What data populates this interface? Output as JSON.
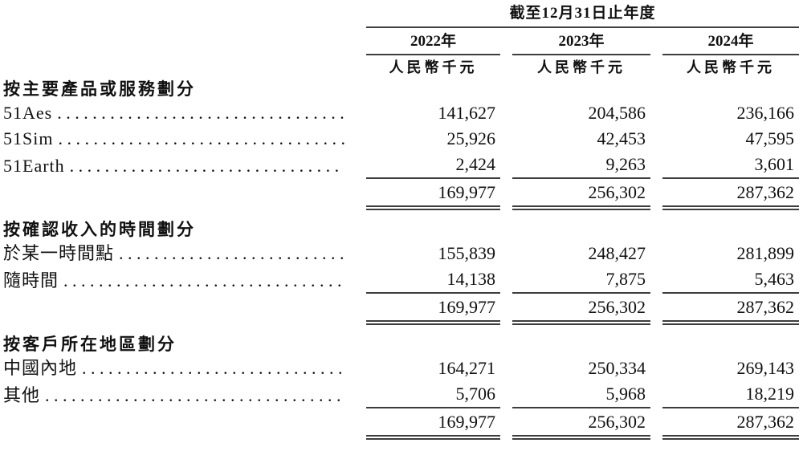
{
  "page": {
    "period_header": "截至12月31日止年度",
    "years": [
      "2022年",
      "2023年",
      "2024年"
    ],
    "unit_label": "人民幣千元",
    "sections": [
      {
        "header": "按主要產品或服務劃分",
        "rows": [
          {
            "label": "51Aes",
            "values": [
              "141,627",
              "204,586",
              "236,166"
            ]
          },
          {
            "label": "51Sim",
            "values": [
              "25,926",
              "42,453",
              "47,595"
            ]
          },
          {
            "label": "51Earth",
            "values": [
              "2,424",
              "9,263",
              "3,601"
            ]
          }
        ],
        "total_values": [
          "169,977",
          "256,302",
          "287,362"
        ]
      },
      {
        "header": "按確認收入的時間劃分",
        "rows": [
          {
            "label": "於某一時間點",
            "values": [
              "155,839",
              "248,427",
              "281,899"
            ]
          },
          {
            "label": "隨時間",
            "values": [
              "14,138",
              "7,875",
              "5,463"
            ]
          }
        ],
        "total_values": [
          "169,977",
          "256,302",
          "287,362"
        ]
      },
      {
        "header": "按客戶所在地區劃分",
        "rows": [
          {
            "label": "中國內地",
            "values": [
              "164,271",
              "250,334",
              "269,143"
            ]
          },
          {
            "label": "其他",
            "values": [
              "5,706",
              "5,968",
              "18,219"
            ]
          }
        ],
        "total_values": [
          "169,977",
          "256,302",
          "287,362"
        ]
      }
    ]
  }
}
